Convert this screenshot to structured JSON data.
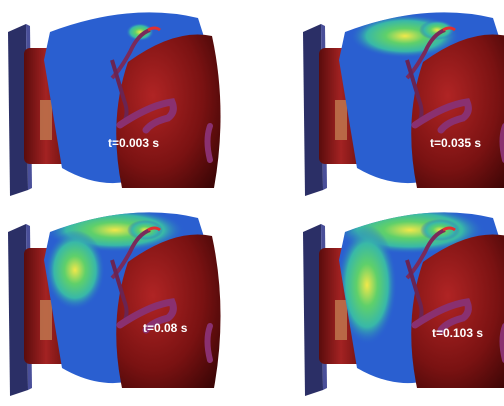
{
  "panels": [
    {
      "label": "t=0.003 s"
    },
    {
      "label": "t=0.035 s"
    },
    {
      "label": "t=0.08 s"
    },
    {
      "label": "t=0.103 s"
    }
  ]
}
